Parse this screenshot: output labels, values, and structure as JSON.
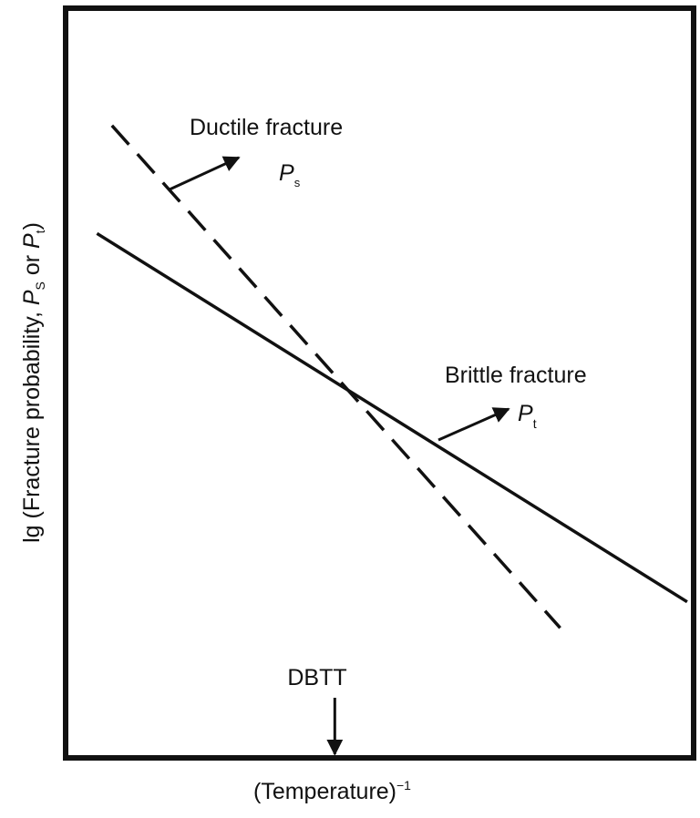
{
  "chart_data": {
    "type": "line",
    "title": "",
    "xlabel": {
      "text": "(Temperature)",
      "sup": "−1"
    },
    "ylabel": {
      "pre": "lg (Fracture probability, ",
      "p1": "P",
      "s1": "S",
      "mid": " or ",
      "p2": "P",
      "s2": "t",
      "post": ")"
    },
    "x_ticks": "none",
    "y_ticks": "none",
    "grid": false,
    "xlim": [
      0,
      1
    ],
    "ylim": [
      0,
      1
    ],
    "series": [
      {
        "name": "Ductile fracture",
        "symbol": "P",
        "subscript": "s",
        "style": "dashed",
        "x": [
          0.07,
          0.79
        ],
        "y": [
          0.846,
          0.171
        ]
      },
      {
        "name": "Brittle fracture",
        "symbol": "P",
        "subscript": "t",
        "style": "solid",
        "x": [
          0.046,
          0.994
        ],
        "y": [
          0.701,
          0.206
        ]
      }
    ],
    "marker": {
      "label": "DBTT",
      "x": 0.428
    }
  }
}
